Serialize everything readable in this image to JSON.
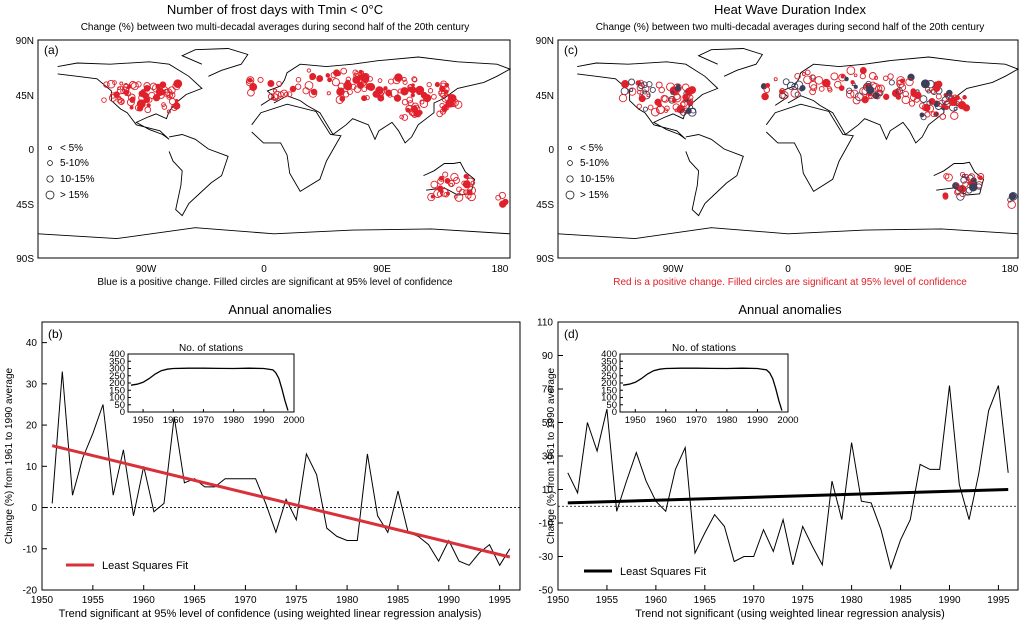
{
  "panels": {
    "a": {
      "label": "(a)",
      "title": "Number of frost days with Tmin < 0°C",
      "subtitle": "Change (%) between two multi-decadal averages during second half of the 20th century",
      "caption": "Blue is a positive change. Filled circles are significant at 95% level of confidence",
      "lat_ticks": [
        "90N",
        "45N",
        "0",
        "45S",
        "90S"
      ],
      "lon_ticks": [
        "90W",
        "0",
        "90E",
        "180"
      ],
      "legend": [
        "< 5%",
        "5-10%",
        "10-15%",
        "> 15%"
      ]
    },
    "c": {
      "label": "(c)",
      "title": "Heat Wave Duration Index",
      "subtitle": "Change (%) between two multi-decadal averages during second half of the 20th century",
      "caption": "Red is a positive change. Filled circles are significant at 95% level of confidence",
      "lat_ticks": [
        "90N",
        "45N",
        "0",
        "45S",
        "90S"
      ],
      "lon_ticks": [
        "90W",
        "0",
        "90E",
        "180"
      ],
      "legend": [
        "< 5%",
        "5-10%",
        "10-15%",
        "> 15%"
      ]
    },
    "b": {
      "title": "Annual anomalies",
      "caption": "Trend significant at 95% level of confidence (using weighted linear regression analysis)",
      "legend": "Least Squares Fit",
      "inset_title": "No. of stations"
    },
    "d": {
      "title": "Annual anomalies",
      "caption": "Trend not significant (using weighted linear regression analysis)",
      "legend": "Least Squares Fit",
      "inset_title": "No. of stations"
    }
  },
  "colors": {
    "red": "#e0202a",
    "navy": "#3a3f5a",
    "fit_b": "#d8313a",
    "fit_d": "#000000"
  },
  "chart_data": [
    {
      "panel": "b",
      "type": "line",
      "label": "(b)",
      "ylabel": "Change (%) from 1961 to 1990 average",
      "xlim": [
        1950,
        1997
      ],
      "ylim": [
        -20,
        45
      ],
      "xticks": [
        1950,
        1955,
        1960,
        1965,
        1970,
        1975,
        1980,
        1985,
        1990,
        1995
      ],
      "yticks": [
        -20,
        -10,
        0,
        10,
        20,
        30,
        40
      ],
      "x": [
        1951,
        1952,
        1953,
        1954,
        1955,
        1956,
        1957,
        1958,
        1959,
        1960,
        1961,
        1962,
        1963,
        1964,
        1965,
        1966,
        1967,
        1968,
        1969,
        1970,
        1971,
        1972,
        1973,
        1974,
        1975,
        1976,
        1977,
        1978,
        1979,
        1980,
        1981,
        1982,
        1983,
        1984,
        1985,
        1986,
        1987,
        1988,
        1989,
        1990,
        1991,
        1992,
        1993,
        1994,
        1995,
        1996
      ],
      "y": [
        1,
        33,
        3,
        12,
        18,
        25,
        3,
        14,
        -2,
        10,
        -1,
        1,
        22,
        6,
        7,
        5,
        5,
        7,
        7,
        7,
        7,
        1,
        -6,
        2,
        -3,
        13,
        8,
        -5,
        -7,
        -8,
        -8,
        13,
        -2,
        -6,
        4,
        -6,
        -7,
        -9,
        -13,
        -8,
        -13,
        -14,
        -11,
        -9,
        -14,
        -10
      ],
      "fit": [
        [
          1951,
          15
        ],
        [
          1996,
          -12
        ]
      ],
      "inset": {
        "xlim": [
          1945,
          2000
        ],
        "ylim": [
          0,
          400
        ],
        "xticks": [
          1950,
          1960,
          1970,
          1980,
          1990,
          2000
        ],
        "yticks": [
          0,
          50,
          100,
          150,
          200,
          250,
          300,
          350,
          400
        ],
        "x": [
          1946,
          1948,
          1950,
          1952,
          1954,
          1956,
          1958,
          1960,
          1965,
          1970,
          1975,
          1980,
          1985,
          1990,
          1993,
          1994,
          1995,
          1996,
          1997,
          1998
        ],
        "y": [
          185,
          192,
          205,
          230,
          262,
          285,
          295,
          300,
          302,
          302,
          301,
          300,
          302,
          300,
          290,
          270,
          230,
          160,
          80,
          10
        ]
      }
    },
    {
      "panel": "d",
      "type": "line",
      "label": "(d)",
      "ylabel": "Change (%) from 1961 to 1990 average",
      "xlim": [
        1950,
        1997
      ],
      "ylim": [
        -50,
        110
      ],
      "xticks": [
        1950,
        1955,
        1960,
        1965,
        1970,
        1975,
        1980,
        1985,
        1990,
        1995
      ],
      "yticks": [
        -50,
        -30,
        -10,
        10,
        30,
        50,
        70,
        90,
        110
      ],
      "x": [
        1951,
        1952,
        1953,
        1954,
        1955,
        1956,
        1957,
        1958,
        1959,
        1960,
        1961,
        1962,
        1963,
        1964,
        1965,
        1966,
        1967,
        1968,
        1969,
        1970,
        1971,
        1972,
        1973,
        1974,
        1975,
        1976,
        1977,
        1978,
        1979,
        1980,
        1981,
        1982,
        1983,
        1984,
        1985,
        1986,
        1987,
        1988,
        1989,
        1990,
        1991,
        1992,
        1993,
        1994,
        1995,
        1996
      ],
      "y": [
        20,
        8,
        50,
        33,
        58,
        -3,
        15,
        32,
        15,
        3,
        -3,
        22,
        35,
        -28,
        -16,
        -5,
        -12,
        -33,
        -30,
        -30,
        -14,
        -27,
        -8,
        -35,
        -12,
        -24,
        -35,
        15,
        -8,
        38,
        3,
        2,
        -14,
        -37,
        -20,
        -8,
        25,
        22,
        22,
        72,
        13,
        -8,
        20,
        57,
        72,
        20
      ],
      "fit": [
        [
          1951,
          2
        ],
        [
          1996,
          10
        ]
      ],
      "inset": {
        "xlim": [
          1945,
          2000
        ],
        "ylim": [
          0,
          400
        ],
        "xticks": [
          1950,
          1960,
          1970,
          1980,
          1990,
          2000
        ],
        "yticks": [
          0,
          50,
          100,
          150,
          200,
          250,
          300,
          350,
          400
        ],
        "x": [
          1946,
          1948,
          1950,
          1952,
          1954,
          1956,
          1958,
          1960,
          1965,
          1970,
          1975,
          1980,
          1985,
          1990,
          1993,
          1994,
          1995,
          1996,
          1997,
          1998
        ],
        "y": [
          185,
          192,
          205,
          230,
          262,
          285,
          295,
          300,
          302,
          302,
          301,
          300,
          302,
          300,
          290,
          270,
          230,
          160,
          80,
          10
        ]
      }
    }
  ]
}
